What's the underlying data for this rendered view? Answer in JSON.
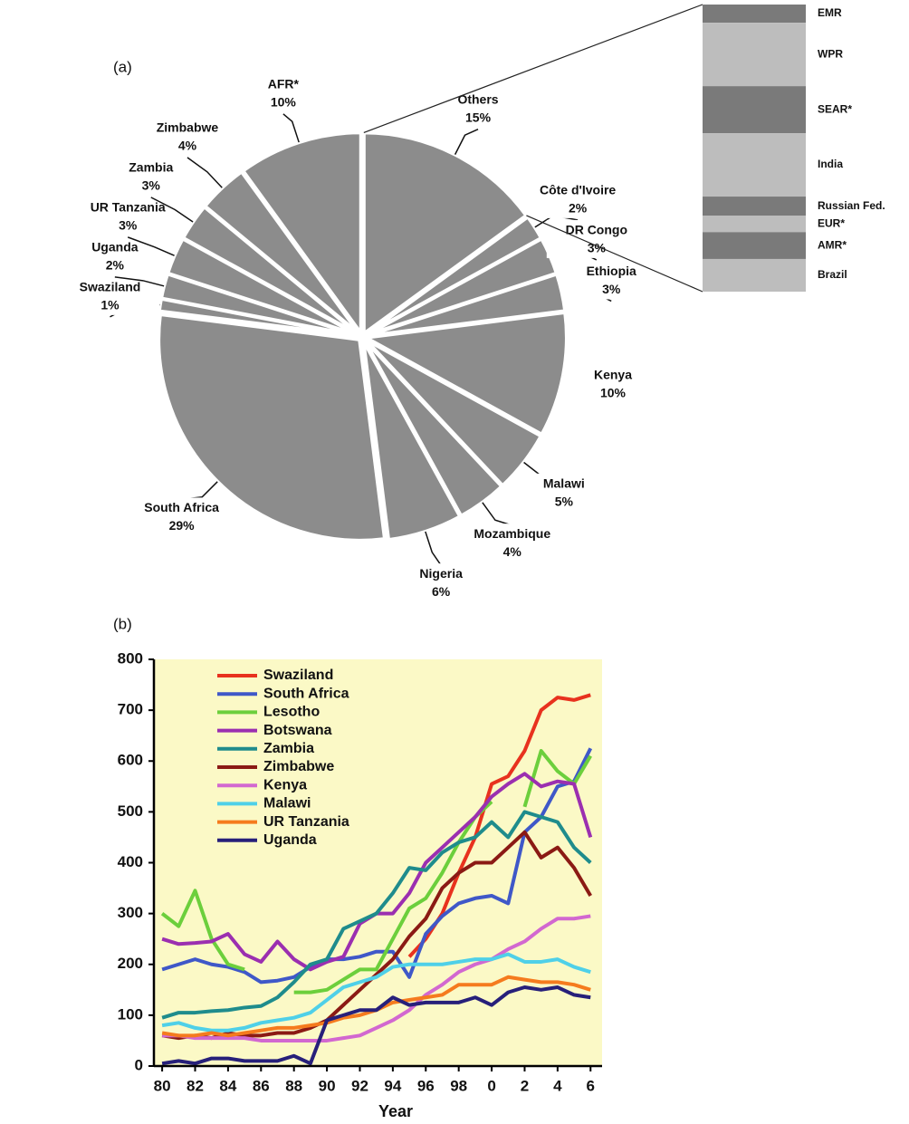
{
  "chart_data": [
    {
      "type": "pie",
      "panel_label": "(a)",
      "categories": [
        "Others",
        "Côte d'Ivoire",
        "DR Congo",
        "Ethiopia",
        "Kenya",
        "Malawi",
        "Mozambique",
        "Nigeria",
        "South Africa",
        "Swaziland",
        "Uganda",
        "UR Tanzania",
        "Zambia",
        "Zimbabwe",
        "AFR*"
      ],
      "values": [
        15,
        2,
        3,
        3,
        10,
        5,
        4,
        6,
        29,
        1,
        2,
        3,
        3,
        4,
        10
      ],
      "value_labels": [
        "15%",
        "2%",
        "3%",
        "3%",
        "10%",
        "5%",
        "4%",
        "6%",
        "29%",
        "1%",
        "2%",
        "3%",
        "3%",
        "4%",
        "10%"
      ],
      "color": "#8c8c8c",
      "breakdown": {
        "categories": [
          "EMR",
          "WPR",
          "SEAR*",
          "India",
          "Russian Fed.",
          "EUR*",
          "AMR*",
          "Brazil"
        ],
        "values": [
          0.95,
          3.3,
          2.45,
          3.3,
          1.0,
          0.85,
          1.4,
          1.7
        ],
        "colors": [
          "#7a7a7a",
          "#bdbdbd",
          "#7a7a7a",
          "#bdbdbd",
          "#7a7a7a",
          "#bdbdbd",
          "#7a7a7a",
          "#bdbdbd"
        ]
      }
    },
    {
      "type": "line",
      "panel_label": "(b)",
      "xlabel": "Year",
      "x": [
        1980,
        1981,
        1982,
        1983,
        1984,
        1985,
        1986,
        1987,
        1988,
        1989,
        1990,
        1991,
        1992,
        1993,
        1994,
        1995,
        1996,
        1997,
        1998,
        1999,
        2000,
        2001,
        2002,
        2003,
        2004,
        2005,
        2006
      ],
      "xlim": [
        1979.5,
        2006.7
      ],
      "xticks": [
        {
          "value": 1980,
          "label": "80"
        },
        {
          "value": 1982,
          "label": "82"
        },
        {
          "value": 1984,
          "label": "84"
        },
        {
          "value": 1986,
          "label": "86"
        },
        {
          "value": 1988,
          "label": "88"
        },
        {
          "value": 1990,
          "label": "90"
        },
        {
          "value": 1992,
          "label": "92"
        },
        {
          "value": 1994,
          "label": "94"
        },
        {
          "value": 1996,
          "label": "96"
        },
        {
          "value": 1998,
          "label": "98"
        },
        {
          "value": 2000,
          "label": "0"
        },
        {
          "value": 2002,
          "label": "2"
        },
        {
          "value": 2004,
          "label": "4"
        },
        {
          "value": 2006,
          "label": "6"
        }
      ],
      "ylim": [
        0,
        800
      ],
      "yticks": [
        0,
        100,
        200,
        300,
        400,
        500,
        600,
        700,
        800
      ],
      "legend": "upper left",
      "background": "#fbf9c6",
      "series": [
        {
          "name": "Swaziland",
          "color": "#e8321e",
          "values": [
            null,
            null,
            null,
            null,
            null,
            null,
            null,
            null,
            null,
            null,
            null,
            null,
            null,
            null,
            null,
            215,
            250,
            300,
            380,
            450,
            555,
            570,
            620,
            700,
            725,
            720,
            730
          ]
        },
        {
          "name": "South Africa",
          "color": "#3f58c8",
          "values": [
            190,
            200,
            210,
            200,
            195,
            185,
            165,
            168,
            175,
            195,
            210,
            210,
            215,
            225,
            225,
            175,
            260,
            295,
            320,
            330,
            335,
            320,
            460,
            490,
            550,
            560,
            625
          ]
        },
        {
          "name": "Lesotho",
          "color": "#6ccf3c",
          "values": [
            300,
            275,
            345,
            250,
            200,
            190,
            null,
            null,
            145,
            145,
            150,
            170,
            190,
            190,
            250,
            310,
            330,
            380,
            440,
            490,
            520,
            null,
            510,
            620,
            580,
            555,
            610
          ]
        },
        {
          "name": "Botswana",
          "color": "#9b2fb0",
          "values": [
            250,
            240,
            242,
            245,
            260,
            220,
            205,
            245,
            210,
            190,
            205,
            215,
            280,
            300,
            300,
            340,
            400,
            430,
            460,
            490,
            530,
            555,
            575,
            550,
            560,
            555,
            450
          ]
        },
        {
          "name": "Zambia",
          "color": "#1f8c8c",
          "values": [
            95,
            105,
            105,
            108,
            110,
            115,
            118,
            135,
            165,
            200,
            210,
            270,
            285,
            300,
            340,
            390,
            385,
            420,
            440,
            450,
            480,
            450,
            500,
            490,
            480,
            430,
            400
          ]
        },
        {
          "name": "Zimbabwe",
          "color": "#8b1a14",
          "values": [
            60,
            55,
            60,
            55,
            65,
            60,
            60,
            65,
            65,
            75,
            90,
            120,
            150,
            180,
            210,
            255,
            290,
            350,
            380,
            400,
            400,
            430,
            460,
            410,
            430,
            390,
            335
          ]
        },
        {
          "name": "Kenya",
          "color": "#d268d0",
          "values": [
            60,
            60,
            55,
            55,
            55,
            55,
            50,
            50,
            50,
            50,
            50,
            55,
            60,
            75,
            90,
            110,
            140,
            160,
            185,
            200,
            210,
            230,
            245,
            270,
            290,
            290,
            295
          ]
        },
        {
          "name": "Malawi",
          "color": "#4fd0e8",
          "values": [
            80,
            85,
            75,
            70,
            70,
            75,
            85,
            90,
            95,
            105,
            130,
            155,
            165,
            175,
            195,
            200,
            200,
            200,
            205,
            210,
            210,
            220,
            205,
            205,
            210,
            195,
            185
          ]
        },
        {
          "name": "UR Tanzania",
          "color": "#f57b1e",
          "values": [
            65,
            60,
            60,
            65,
            60,
            65,
            70,
            75,
            75,
            80,
            85,
            95,
            100,
            110,
            125,
            130,
            135,
            140,
            160,
            160,
            160,
            175,
            170,
            165,
            165,
            160,
            150
          ]
        },
        {
          "name": "Uganda",
          "color": "#27207a",
          "values": [
            5,
            10,
            5,
            15,
            15,
            10,
            10,
            10,
            20,
            5,
            90,
            100,
            110,
            110,
            135,
            120,
            125,
            125,
            125,
            135,
            120,
            145,
            155,
            150,
            155,
            140,
            135
          ]
        }
      ]
    }
  ]
}
